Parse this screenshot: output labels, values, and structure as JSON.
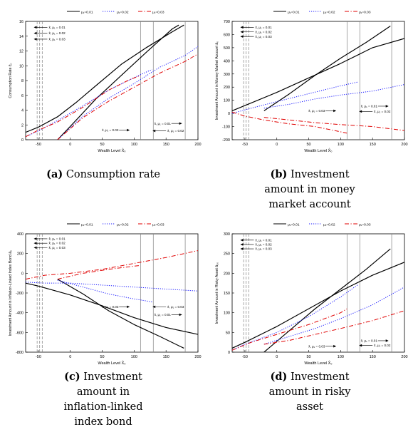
{
  "colors": {
    "black": "#000000",
    "blue": "#1a1aff",
    "red": "#e00000",
    "grid": "#808080"
  },
  "legend": [
    {
      "label": "μ₁=0.01",
      "color": "#000000",
      "dash": "solid"
    },
    {
      "label": "μ₁=0.02",
      "color": "#1a1aff",
      "dash": "dotted"
    },
    {
      "label": "μ₁=0.03",
      "color": "#e00000",
      "dash": "dashdot"
    }
  ],
  "chart_data": [
    {
      "type": "line",
      "letter": "(a)",
      "caption": [
        "Consumption rate"
      ],
      "xlabel": "Wealth Level X̂₀",
      "ylabel": "Consumption Rate ĉ₀",
      "xlim": [
        -70,
        200
      ],
      "ylim": [
        0,
        16
      ],
      "xticks": [
        -50,
        0,
        50,
        100,
        150,
        200
      ],
      "yticks": [
        0,
        2,
        4,
        6,
        8,
        10,
        12,
        14,
        16
      ],
      "vlines_dashed": [
        -52,
        -48,
        -44
      ],
      "vlines_solid": [
        110,
        130,
        180
      ],
      "series": [
        {
          "color": "black",
          "dash": "solid",
          "points": [
            [
              -70,
              1.0
            ],
            [
              -50,
              1.7
            ],
            [
              -20,
              3.1
            ],
            [
              10,
              5.1
            ],
            [
              40,
              7.3
            ],
            [
              80,
              10.2
            ],
            [
              120,
              12.5
            ],
            [
              160,
              14.6
            ],
            [
              178,
              15.5
            ]
          ]
        },
        {
          "color": "black",
          "dash": "solid",
          "points": [
            [
              -20,
              0.0
            ],
            [
              0,
              1.8
            ],
            [
              40,
              5.5
            ],
            [
              80,
              8.7
            ],
            [
              120,
              11.9
            ],
            [
              160,
              15.0
            ],
            [
              170,
              15.5
            ]
          ]
        },
        {
          "color": "blue",
          "dash": "dotted",
          "points": [
            [
              -70,
              0.4
            ],
            [
              -50,
              1.2
            ],
            [
              -20,
              2.6
            ],
            [
              20,
              4.6
            ],
            [
              60,
              6.7
            ],
            [
              100,
              8.4
            ],
            [
              128,
              9.5
            ]
          ]
        },
        {
          "color": "blue",
          "dash": "dotted",
          "points": [
            [
              -20,
              0.0
            ],
            [
              20,
              3.2
            ],
            [
              60,
              5.6
            ],
            [
              100,
              7.6
            ],
            [
              140,
              9.8
            ],
            [
              180,
              11.4
            ],
            [
              200,
              12.6
            ]
          ]
        },
        {
          "color": "red",
          "dash": "dashdot",
          "points": [
            [
              -70,
              0.4
            ],
            [
              -50,
              1.3
            ],
            [
              -20,
              2.4
            ],
            [
              20,
              4.4
            ],
            [
              60,
              6.7
            ],
            [
              90,
              8.0
            ],
            [
              110,
              8.7
            ]
          ]
        },
        {
          "color": "red",
          "dash": "dashdot",
          "points": [
            [
              -20,
              0.0
            ],
            [
              20,
              3.0
            ],
            [
              60,
              5.2
            ],
            [
              100,
              7.1
            ],
            [
              140,
              9.0
            ],
            [
              180,
              10.6
            ],
            [
              200,
              11.6
            ]
          ]
        }
      ],
      "annotations": [
        {
          "text": "x̂, μ₁ = 0.01",
          "x": -36,
          "y": 15.2,
          "arrow": "left"
        },
        {
          "text": "x̂, μ₁ = 0.02",
          "x": -36,
          "y": 14.4,
          "arrow": "left"
        },
        {
          "text": "x̂, μ₁ = 0.03",
          "x": -36,
          "y": 13.6,
          "arrow": "left"
        },
        {
          "text": "x̂, μ₁ = 0.03",
          "x": 92,
          "y": 1.3,
          "arrow": "right"
        },
        {
          "text": "x̂, μ₁ = 0.01",
          "x": 174,
          "y": 2.2,
          "arrow": "right"
        },
        {
          "text": "x̂, μ₁ = 0.02",
          "x": 150,
          "y": 1.2,
          "arrow": "left"
        }
      ]
    },
    {
      "type": "line",
      "letter": "(b)",
      "caption": [
        "Investment",
        "amount in money",
        "market account"
      ],
      "xlabel": "Wealth Level X̂₀",
      "ylabel": "Investment Amount in Money Market Account â₀",
      "xlim": [
        -70,
        200
      ],
      "ylim": [
        -200,
        700
      ],
      "xticks": [
        -50,
        0,
        50,
        100,
        150,
        200
      ],
      "yticks": [
        -200,
        -100,
        0,
        100,
        200,
        300,
        400,
        500,
        600,
        700
      ],
      "vlines_dashed": [
        -52,
        -48,
        -44
      ],
      "vlines_solid": [
        110,
        130,
        180
      ],
      "series": [
        {
          "color": "black",
          "dash": "solid",
          "points": [
            [
              -70,
              20
            ],
            [
              -50,
              60
            ],
            [
              0,
              160
            ],
            [
              50,
              270
            ],
            [
              100,
              380
            ],
            [
              150,
              500
            ],
            [
              200,
              570
            ]
          ]
        },
        {
          "color": "black",
          "dash": "solid",
          "points": [
            [
              -20,
              20
            ],
            [
              20,
              150
            ],
            [
              60,
              290
            ],
            [
              100,
              420
            ],
            [
              140,
              540
            ],
            [
              178,
              665
            ]
          ]
        },
        {
          "color": "blue",
          "dash": "dotted",
          "points": [
            [
              -70,
              0
            ],
            [
              -40,
              40
            ],
            [
              0,
              90
            ],
            [
              50,
              150
            ],
            [
              100,
              210
            ],
            [
              128,
              240
            ]
          ]
        },
        {
          "color": "blue",
          "dash": "dotted",
          "points": [
            [
              -20,
              40
            ],
            [
              20,
              70
            ],
            [
              60,
              110
            ],
            [
              100,
              140
            ],
            [
              150,
              170
            ],
            [
              200,
              220
            ]
          ]
        },
        {
          "color": "red",
          "dash": "dashdot",
          "points": [
            [
              -70,
              10
            ],
            [
              -50,
              -20
            ],
            [
              -20,
              -50
            ],
            [
              20,
              -80
            ],
            [
              60,
              -100
            ],
            [
              110,
              -150
            ]
          ]
        },
        {
          "color": "red",
          "dash": "dashdot",
          "points": [
            [
              -20,
              -30
            ],
            [
              20,
              -50
            ],
            [
              60,
              -70
            ],
            [
              100,
              -85
            ],
            [
              150,
              -100
            ],
            [
              200,
              -130
            ]
          ]
        }
      ],
      "annotations": [
        {
          "text": "x̂, μ₁ = 0.01",
          "x": -36,
          "y": 655,
          "arrow": "left"
        },
        {
          "text": "x̂, μ₁ = 0.02",
          "x": -36,
          "y": 620,
          "arrow": "left"
        },
        {
          "text": "x̂, μ₁ = 0.03",
          "x": -36,
          "y": 585,
          "arrow": "left"
        },
        {
          "text": "x̂, μ₁ = 0.03",
          "x": 92,
          "y": 20,
          "arrow": "right"
        },
        {
          "text": "x̂, μ₁ = 0.01",
          "x": 174,
          "y": 55,
          "arrow": "right"
        },
        {
          "text": "x̂, μ₁ = 0.02",
          "x": 150,
          "y": 15,
          "arrow": "left"
        }
      ]
    },
    {
      "type": "line",
      "letter": "(c)",
      "caption": [
        "Investment",
        "amount in",
        "inflation-linked",
        "index bond"
      ],
      "xlabel": "Wealth Level X̂₀",
      "ylabel": "Investment Amount in Inflation-Linked Index Bond â₀",
      "xlim": [
        -70,
        200
      ],
      "ylim": [
        -800,
        400
      ],
      "xticks": [
        -50,
        0,
        50,
        100,
        150,
        200
      ],
      "yticks": [
        -800,
        -600,
        -400,
        -200,
        0,
        200,
        400
      ],
      "vlines_dashed": [
        -52,
        -48,
        -44
      ],
      "vlines_solid": [
        110,
        130,
        180
      ],
      "series": [
        {
          "color": "black",
          "dash": "solid",
          "points": [
            [
              -70,
              -100
            ],
            [
              -50,
              -130
            ],
            [
              0,
              -220
            ],
            [
              50,
              -330
            ],
            [
              100,
              -450
            ],
            [
              150,
              -550
            ],
            [
              200,
              -620
            ]
          ]
        },
        {
          "color": "black",
          "dash": "solid",
          "points": [
            [
              -20,
              -60
            ],
            [
              20,
              -210
            ],
            [
              60,
              -380
            ],
            [
              100,
              -520
            ],
            [
              140,
              -640
            ],
            [
              178,
              -760
            ]
          ]
        },
        {
          "color": "blue",
          "dash": "dotted",
          "points": [
            [
              -70,
              -90
            ],
            [
              -40,
              -100
            ],
            [
              0,
              -100
            ],
            [
              50,
              -120
            ],
            [
              100,
              -140
            ],
            [
              150,
              -160
            ],
            [
              200,
              -180
            ]
          ]
        },
        {
          "color": "blue",
          "dash": "dotted",
          "points": [
            [
              -20,
              -70
            ],
            [
              20,
              -140
            ],
            [
              60,
              -210
            ],
            [
              100,
              -260
            ],
            [
              128,
              -290
            ]
          ]
        },
        {
          "color": "red",
          "dash": "dashdot",
          "points": [
            [
              -70,
              -60
            ],
            [
              -40,
              -20
            ],
            [
              0,
              0
            ],
            [
              50,
              40
            ],
            [
              100,
              100
            ],
            [
              150,
              160
            ],
            [
              200,
              230
            ]
          ]
        },
        {
          "color": "red",
          "dash": "dashdot",
          "points": [
            [
              -20,
              -60
            ],
            [
              20,
              0
            ],
            [
              60,
              40
            ],
            [
              110,
              80
            ]
          ]
        }
      ],
      "annotations": [
        {
          "text": "x̂, μ₁ = 0.01",
          "x": -36,
          "y": 350,
          "arrow": "left"
        },
        {
          "text": "x̂, μ₁ = 0.02",
          "x": -36,
          "y": 305,
          "arrow": "left"
        },
        {
          "text": "x̂, μ₁ = 0.03",
          "x": -36,
          "y": 260,
          "arrow": "left"
        },
        {
          "text": "x̂, μ₁ = 0.03",
          "x": 92,
          "y": -340,
          "arrow": "right"
        },
        {
          "text": "x̂, μ₁ = 0.03",
          "x": 150,
          "y": -340,
          "arrow": "left"
        },
        {
          "text": "x̂, μ₁ = 0.01",
          "x": 174,
          "y": -420,
          "arrow": "right"
        }
      ]
    },
    {
      "type": "line",
      "letter": "(d)",
      "caption": [
        "Investment",
        "amount in risky",
        "asset"
      ],
      "xlabel": "Wealth Level X̂₀",
      "ylabel": "Investment Amount in Risky Asset â₂₀",
      "xlim": [
        -70,
        200
      ],
      "ylim": [
        0,
        300
      ],
      "xticks": [
        -50,
        0,
        50,
        100,
        150,
        200
      ],
      "yticks": [
        0,
        50,
        100,
        150,
        200,
        250,
        300
      ],
      "vlines_dashed": [
        -52,
        -48,
        -44
      ],
      "vlines_solid": [
        110,
        130,
        180
      ],
      "series": [
        {
          "color": "black",
          "dash": "solid",
          "points": [
            [
              -70,
              10
            ],
            [
              -50,
              25
            ],
            [
              0,
              65
            ],
            [
              50,
              110
            ],
            [
              100,
              155
            ],
            [
              150,
              195
            ],
            [
              200,
              228
            ]
          ]
        },
        {
          "color": "black",
          "dash": "solid",
          "points": [
            [
              -20,
              0
            ],
            [
              20,
              55
            ],
            [
              60,
              110
            ],
            [
              100,
              160
            ],
            [
              140,
              210
            ],
            [
              178,
              262
            ]
          ]
        },
        {
          "color": "blue",
          "dash": "dotted",
          "points": [
            [
              -70,
              5
            ],
            [
              -50,
              20
            ],
            [
              0,
              50
            ],
            [
              50,
              90
            ],
            [
              100,
              140
            ],
            [
              128,
              172
            ]
          ]
        },
        {
          "color": "blue",
          "dash": "dotted",
          "points": [
            [
              -20,
              20
            ],
            [
              20,
              40
            ],
            [
              60,
              60
            ],
            [
              100,
              85
            ],
            [
              150,
              120
            ],
            [
              200,
              165
            ]
          ]
        },
        {
          "color": "red",
          "dash": "dashdot",
          "points": [
            [
              -70,
              5
            ],
            [
              -40,
              25
            ],
            [
              0,
              45
            ],
            [
              50,
              70
            ],
            [
              100,
              100
            ],
            [
              110,
              110
            ]
          ]
        },
        {
          "color": "red",
          "dash": "dashdot",
          "points": [
            [
              -20,
              20
            ],
            [
              20,
              30
            ],
            [
              60,
              45
            ],
            [
              100,
              60
            ],
            [
              150,
              80
            ],
            [
              200,
              105
            ]
          ]
        }
      ],
      "annotations": [
        {
          "text": "x̂, μ₁ = 0.01",
          "x": -36,
          "y": 284,
          "arrow": "left"
        },
        {
          "text": "x̂, μ₁ = 0.02",
          "x": -36,
          "y": 273,
          "arrow": "left"
        },
        {
          "text": "x̂, μ₁ = 0.03",
          "x": -36,
          "y": 262,
          "arrow": "left"
        },
        {
          "text": "x̂, μ₁ = 0.03",
          "x": 92,
          "y": 15,
          "arrow": "right"
        },
        {
          "text": "x̂, μ₁ = 0.01",
          "x": 174,
          "y": 29,
          "arrow": "right"
        },
        {
          "text": "x̂, μ₁ = 0.02",
          "x": 150,
          "y": 17,
          "arrow": "left"
        }
      ]
    }
  ]
}
